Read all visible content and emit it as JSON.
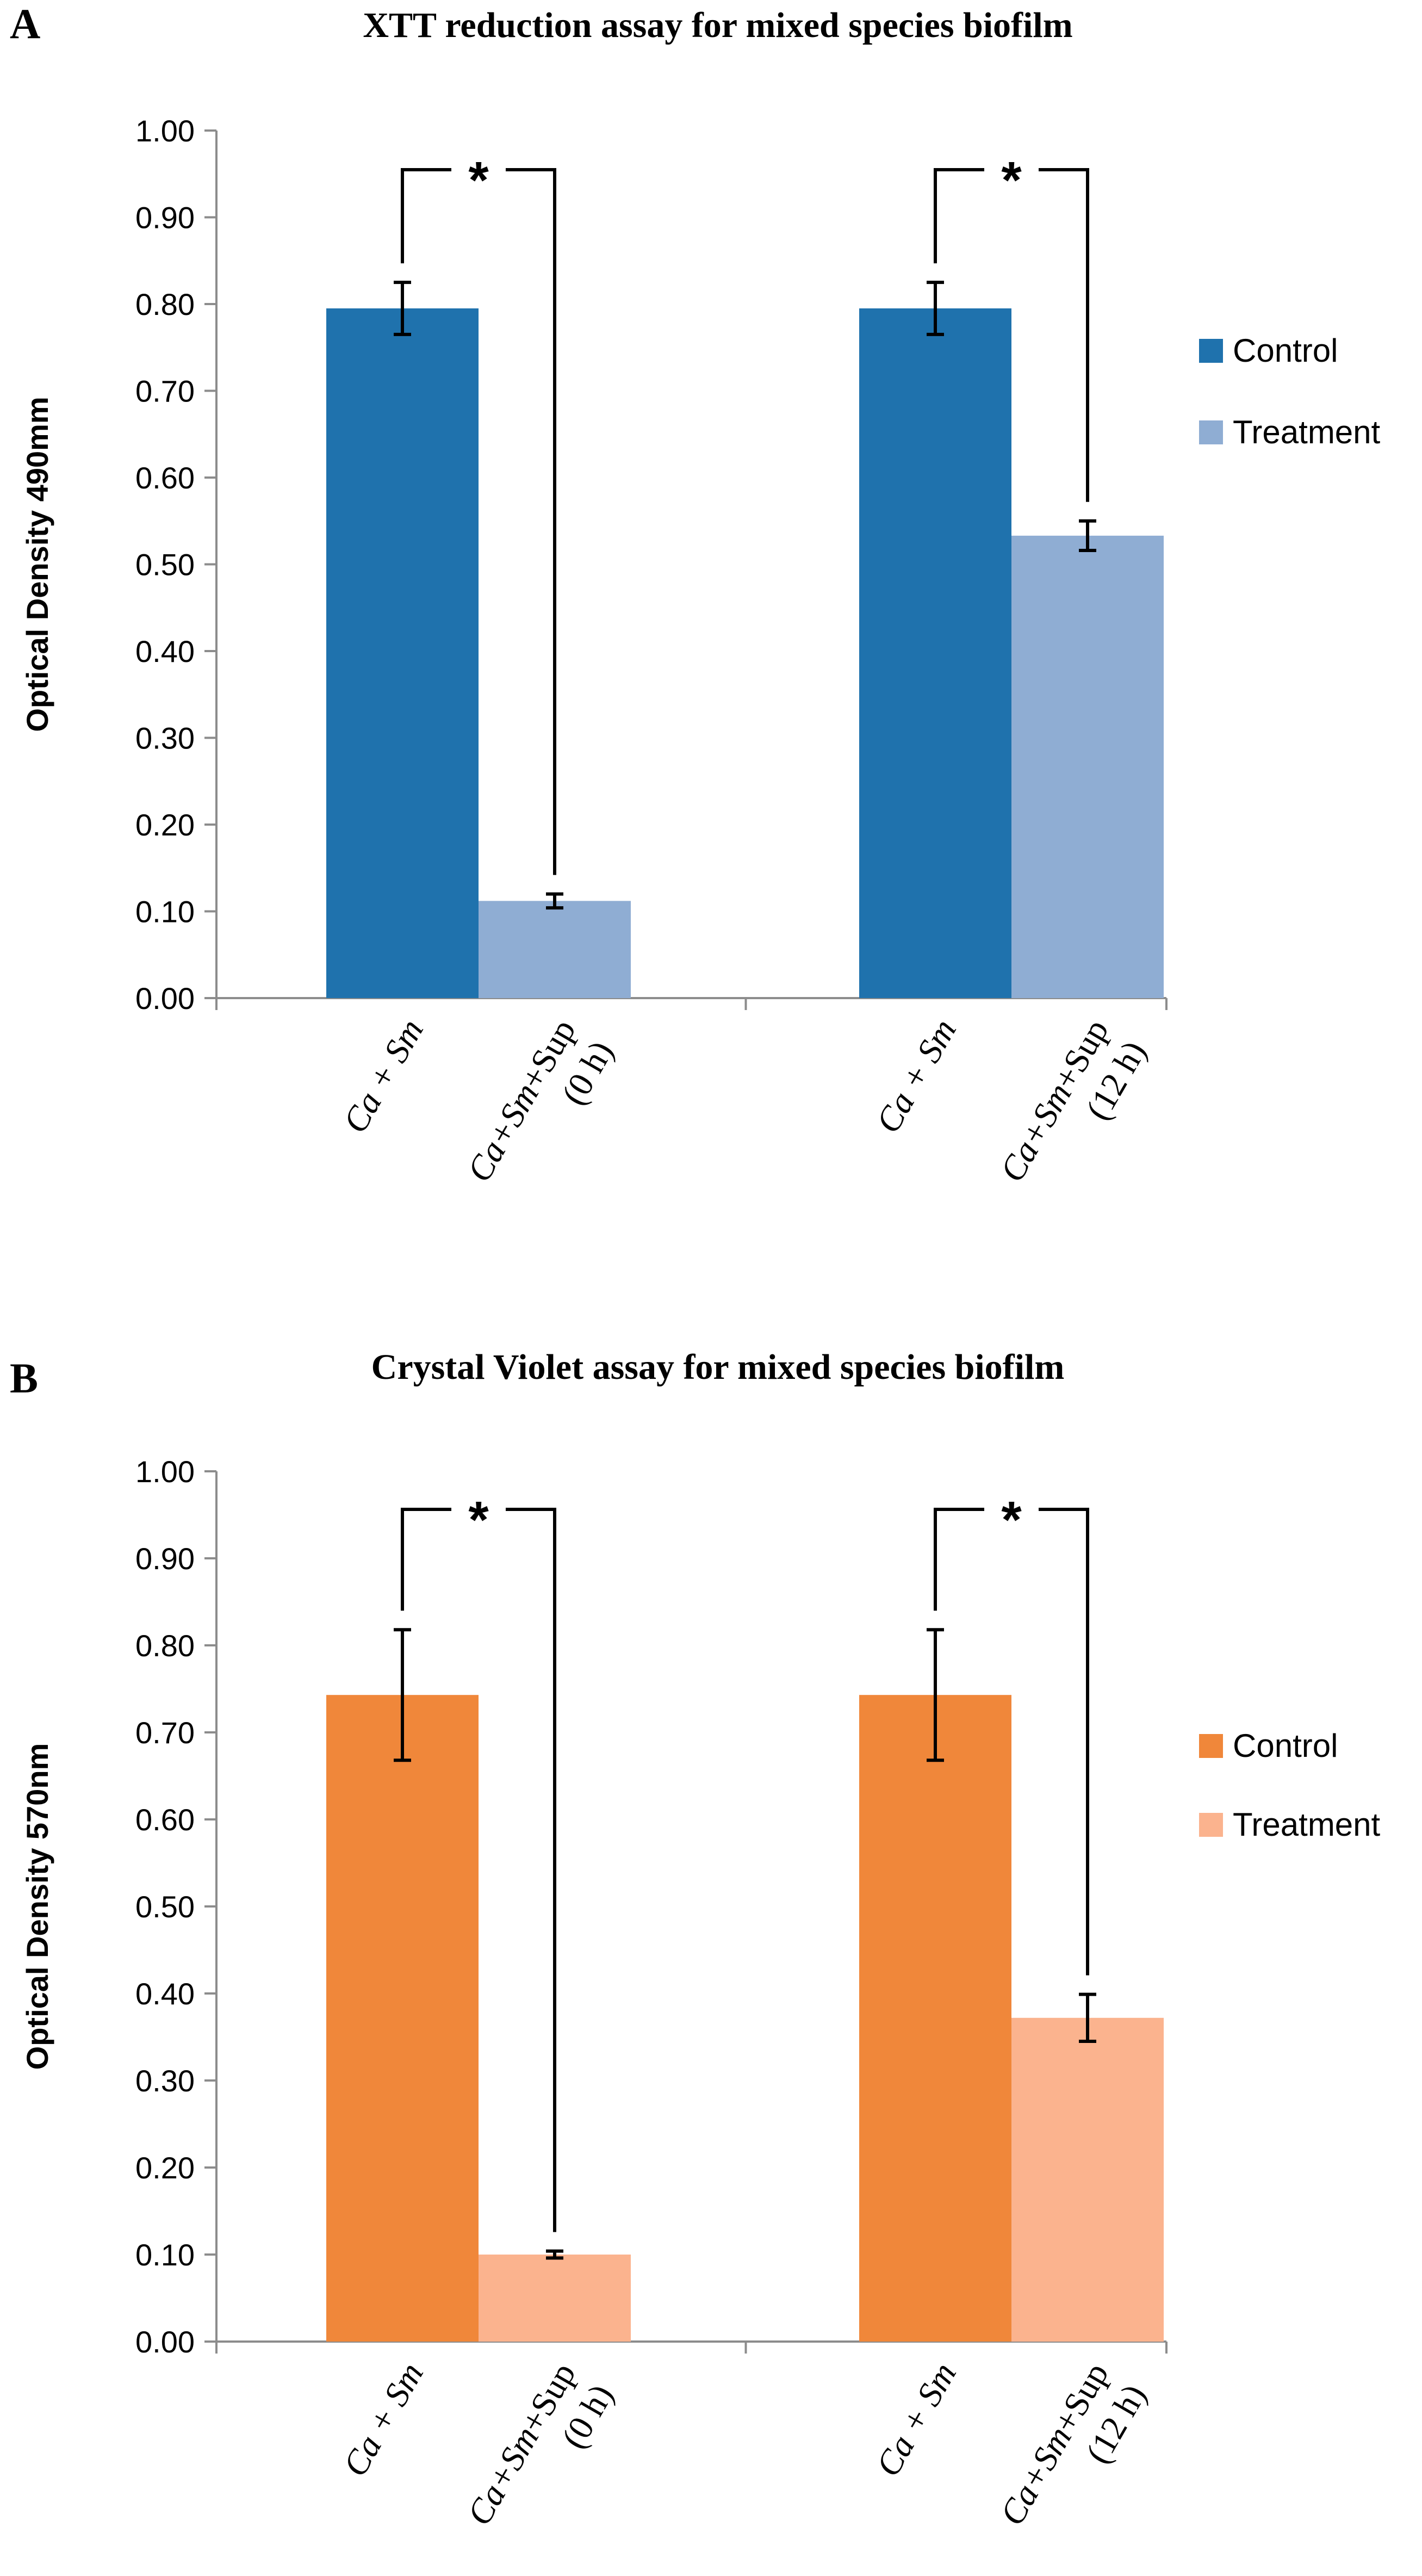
{
  "chart_data": [
    {
      "panel_label": "A",
      "type": "bar",
      "title": "XTT  reduction assay for mixed species biofilm",
      "xlabel": "",
      "ylabel": "Optical Density 490mm",
      "ylim": [
        0,
        1.0
      ],
      "yticks": [
        "0.00",
        "0.10",
        "0.20",
        "0.30",
        "0.40",
        "0.50",
        "0.60",
        "0.70",
        "0.80",
        "0.90",
        "1.00"
      ],
      "groups": [
        {
          "labels": [
            {
              "line1": "Ca + Sm",
              "line2": ""
            },
            {
              "line1": "Ca+Sm+Sup",
              "line2": "(0 h)"
            }
          ],
          "bars": [
            {
              "series": "Control",
              "value": 0.795,
              "error": 0.03
            },
            {
              "series": "Treatment",
              "value": 0.112,
              "error": 0.008
            }
          ],
          "significance": "*"
        },
        {
          "labels": [
            {
              "line1": "Ca + Sm",
              "line2": ""
            },
            {
              "line1": "Ca+Sm+Sup",
              "line2": "(12 h)"
            }
          ],
          "bars": [
            {
              "series": "Control",
              "value": 0.795,
              "error": 0.03
            },
            {
              "series": "Treatment",
              "value": 0.533,
              "error": 0.017
            }
          ],
          "significance": "*"
        }
      ],
      "legend": [
        {
          "name": "Control",
          "color": "#1f72ad"
        },
        {
          "name": "Treatment",
          "color": "#8fadd3"
        }
      ],
      "legend_position": "right"
    },
    {
      "panel_label": "B",
      "type": "bar",
      "title": "Crystal Violet assay for mixed species biofilm",
      "xlabel": "",
      "ylabel": "Optical Density 570nm",
      "ylim": [
        0,
        1.0
      ],
      "yticks": [
        "0.00",
        "0.10",
        "0.20",
        "0.30",
        "0.40",
        "0.50",
        "0.60",
        "0.70",
        "0.80",
        "0.90",
        "1.00"
      ],
      "groups": [
        {
          "labels": [
            {
              "line1": "Ca + Sm",
              "line2": ""
            },
            {
              "line1": "Ca+Sm+Sup",
              "line2": "(0 h)"
            }
          ],
          "bars": [
            {
              "series": "Control",
              "value": 0.743,
              "error": 0.075
            },
            {
              "series": "Treatment",
              "value": 0.1,
              "error": 0.004
            }
          ],
          "significance": "*"
        },
        {
          "labels": [
            {
              "line1": "Ca + Sm",
              "line2": ""
            },
            {
              "line1": "Ca+Sm+Sup",
              "line2": "(12 h)"
            }
          ],
          "bars": [
            {
              "series": "Control",
              "value": 0.743,
              "error": 0.075
            },
            {
              "series": "Treatment",
              "value": 0.372,
              "error": 0.027
            }
          ],
          "significance": "*"
        }
      ],
      "legend": [
        {
          "name": "Control",
          "color": "#f0873a"
        },
        {
          "name": "Treatment",
          "color": "#fbb38e"
        }
      ],
      "legend_position": "right"
    }
  ]
}
